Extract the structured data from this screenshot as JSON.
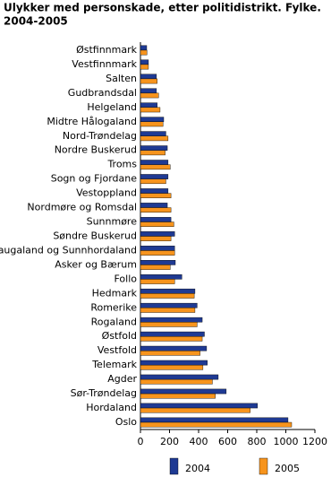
{
  "chart_data": {
    "type": "bar",
    "orientation": "horizontal",
    "title": "Ulykker med personskade, etter politidistrikt. Fylke.",
    "subtitle": "2004-2005",
    "categories": [
      "Østfinnmark",
      "Vestfinnmark",
      "Salten",
      "Gudbrandsdal",
      "Helgeland",
      "Midtre Hålogaland",
      "Nord-Trøndelag",
      "Nordre Buskerud",
      "Troms",
      "Sogn og Fjordane",
      "Vestoppland",
      "Nordmøre og Romsdal",
      "Sunnmøre",
      "Søndre Buskerud",
      "Haugaland og Sunnhordaland",
      "Asker og Bærum",
      "Follo",
      "Hedmark",
      "Romerike",
      "Rogaland",
      "Østfold",
      "Vestfold",
      "Telemark",
      "Agder",
      "Sør-Trøndelag",
      "Hordaland",
      "Oslo"
    ],
    "series": [
      {
        "name": "2004",
        "color": "#1f3a93",
        "values": [
          43,
          55,
          110,
          110,
          115,
          160,
          175,
          185,
          190,
          190,
          190,
          185,
          210,
          235,
          235,
          240,
          285,
          375,
          390,
          425,
          440,
          455,
          460,
          535,
          590,
          805,
          1015
        ]
      },
      {
        "name": "2005",
        "color": "#f7941d",
        "values": [
          45,
          55,
          115,
          125,
          135,
          155,
          190,
          170,
          205,
          175,
          210,
          210,
          230,
          210,
          235,
          205,
          235,
          370,
          375,
          390,
          425,
          410,
          430,
          495,
          515,
          755,
          1040
        ]
      }
    ],
    "xlim": [
      0,
      1200
    ],
    "xticks": [
      0,
      200,
      400,
      600,
      800,
      1000,
      1200
    ],
    "grid": false,
    "legend": "bottom"
  }
}
